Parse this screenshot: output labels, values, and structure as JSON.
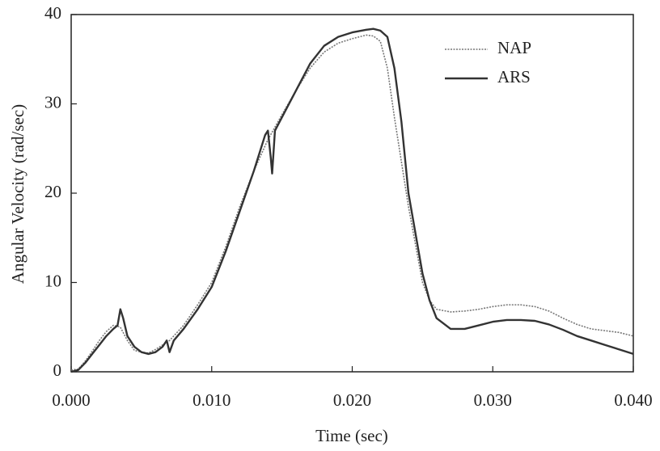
{
  "chart_data": {
    "type": "line",
    "x_label": "Time (sec)",
    "y_label": "Angular Velocity (rad/sec)",
    "xlim": [
      0,
      0.04
    ],
    "ylim": [
      0,
      40
    ],
    "xticks": [
      {
        "value": 0,
        "label": "0.000"
      },
      {
        "value": 0.01,
        "label": "0.010"
      },
      {
        "value": 0.02,
        "label": "0.020"
      },
      {
        "value": 0.03,
        "label": "0.030"
      },
      {
        "value": 0.04,
        "label": "0.040"
      }
    ],
    "yticks": [
      0,
      10,
      20,
      30,
      40
    ],
    "legend": "top-right",
    "series": [
      {
        "name": "NAP",
        "color": "#777777",
        "line_style": "dotted",
        "x": [
          0,
          0.0005,
          0.001,
          0.0015,
          0.002,
          0.0025,
          0.003,
          0.0035,
          0.004,
          0.0045,
          0.005,
          0.0055,
          0.006,
          0.007,
          0.008,
          0.009,
          0.01,
          0.011,
          0.012,
          0.013,
          0.014,
          0.015,
          0.016,
          0.017,
          0.018,
          0.019,
          0.02,
          0.021,
          0.0215,
          0.022,
          0.0225,
          0.023,
          0.024,
          0.025,
          0.0255,
          0.026,
          0.027,
          0.028,
          0.029,
          0.03,
          0.031,
          0.032,
          0.033,
          0.034,
          0.035,
          0.036,
          0.037,
          0.038,
          0.039,
          0.04
        ],
        "values": [
          0.2,
          0.3,
          1.2,
          2.3,
          3.5,
          4.5,
          5.2,
          5,
          3.5,
          2.4,
          2.2,
          2.1,
          2.5,
          3.5,
          5.2,
          7.5,
          10,
          14,
          18.5,
          22.5,
          26,
          28.8,
          31.5,
          34,
          35.8,
          36.8,
          37.3,
          37.7,
          37.6,
          37,
          34,
          28.5,
          18.5,
          10,
          8,
          7,
          6.7,
          6.8,
          7,
          7.3,
          7.5,
          7.5,
          7.3,
          6.8,
          6,
          5.3,
          4.8,
          4.6,
          4.4,
          4
        ]
      },
      {
        "name": "ARS",
        "color": "#333333",
        "line_style": "solid",
        "x": [
          0,
          0.0005,
          0.001,
          0.0015,
          0.002,
          0.0025,
          0.003,
          0.0033,
          0.0035,
          0.0037,
          0.004,
          0.0045,
          0.005,
          0.0055,
          0.006,
          0.0065,
          0.0068,
          0.007,
          0.0073,
          0.008,
          0.009,
          0.01,
          0.011,
          0.012,
          0.013,
          0.0138,
          0.014,
          0.0142,
          0.0143,
          0.0145,
          0.015,
          0.016,
          0.017,
          0.018,
          0.019,
          0.02,
          0.021,
          0.0215,
          0.022,
          0.0225,
          0.023,
          0.0235,
          0.024,
          0.025,
          0.0255,
          0.026,
          0.027,
          0.028,
          0.029,
          0.03,
          0.031,
          0.032,
          0.033,
          0.034,
          0.035,
          0.036,
          0.037,
          0.038,
          0.039,
          0.04
        ],
        "values": [
          0,
          0.2,
          1,
          2,
          3,
          4,
          4.8,
          5.2,
          7,
          6,
          4,
          2.8,
          2.2,
          2,
          2.2,
          2.8,
          3.5,
          2.2,
          3.5,
          4.8,
          7,
          9.5,
          13.5,
          18,
          22.5,
          26.5,
          27,
          24,
          22.2,
          27,
          28.5,
          31.5,
          34.5,
          36.5,
          37.5,
          38,
          38.3,
          38.4,
          38.2,
          37.5,
          34,
          28,
          20,
          11,
          8,
          6,
          4.8,
          4.8,
          5.2,
          5.6,
          5.8,
          5.8,
          5.7,
          5.3,
          4.7,
          4,
          3.5,
          3,
          2.5,
          2
        ]
      }
    ]
  }
}
